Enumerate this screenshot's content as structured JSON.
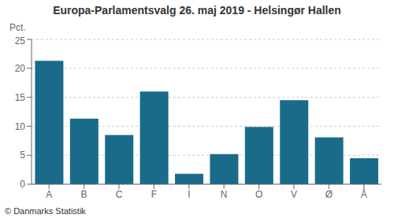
{
  "chart_data": {
    "type": "bar",
    "title": "Europa-Parlamentsvalg 26. maj 2019 - Helsingør Hallen",
    "ylabel": "Pct.",
    "annotations": [
      "© Danmarks Statistik"
    ],
    "categories": [
      "A",
      "B",
      "C",
      "F",
      "I",
      "N",
      "O",
      "V",
      "Ø",
      "Å"
    ],
    "values": [
      21.3,
      11.3,
      8.5,
      16.0,
      1.8,
      5.2,
      9.9,
      14.5,
      8.1,
      4.5
    ],
    "color": "#1a6b8a",
    "ylim": [
      0,
      25
    ],
    "yticks": [
      0,
      5,
      10,
      15,
      20,
      25
    ],
    "grid": true
  }
}
